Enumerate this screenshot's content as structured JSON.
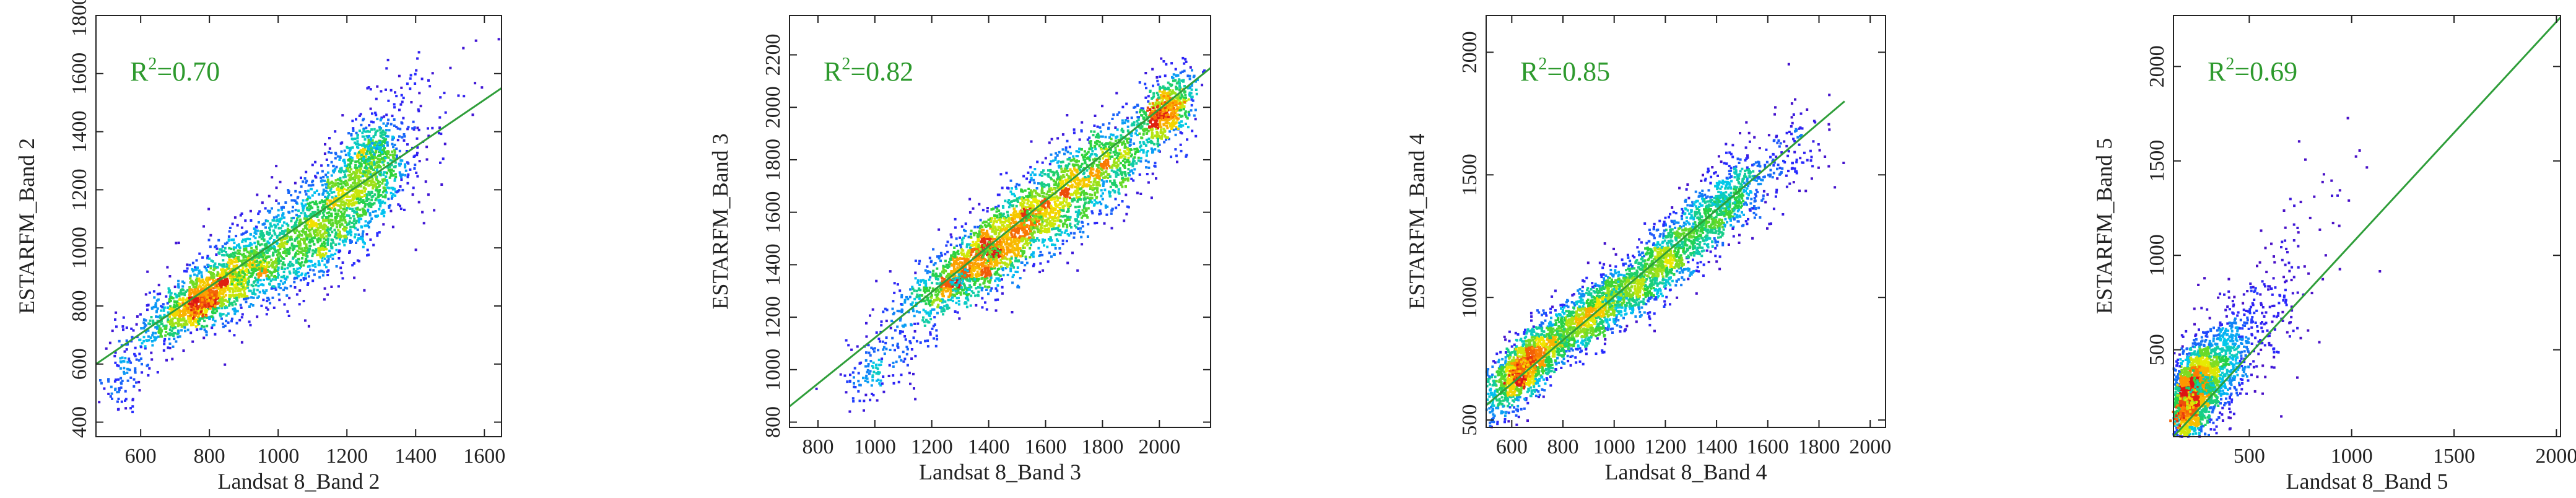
{
  "chart_data": [
    {
      "type": "scatter",
      "xlabel": "Landsat 8_Band 2",
      "ylabel": "ESTARFM_Band 2",
      "annotation": {
        "prefix": "R",
        "sup": "2",
        "value": "=0.70"
      },
      "xlim": [
        470,
        1650
      ],
      "ylim": [
        350,
        1800
      ],
      "xticks": [
        600,
        800,
        1000,
        1200,
        1400,
        1600
      ],
      "yticks": [
        400,
        600,
        800,
        1000,
        1200,
        1400,
        1600,
        1800
      ],
      "fit_line": {
        "x": [
          470,
          1650
        ],
        "y": [
          600,
          1550
        ]
      },
      "clusters": [
        {
          "cx": 780,
          "cy": 820,
          "sx": 80,
          "sy": 70,
          "rho": 0.75,
          "n": 900
        },
        {
          "cx": 950,
          "cy": 960,
          "sx": 140,
          "sy": 110,
          "rho": 0.7,
          "n": 1200
        },
        {
          "cx": 1160,
          "cy": 1120,
          "sx": 100,
          "sy": 120,
          "rho": 0.6,
          "n": 900
        },
        {
          "cx": 1270,
          "cy": 1280,
          "sx": 60,
          "sy": 100,
          "rho": 0.4,
          "n": 600
        },
        {
          "cx": 560,
          "cy": 580,
          "sx": 40,
          "sy": 80,
          "rho": 0.3,
          "n": 120
        },
        {
          "cx": 1400,
          "cy": 1500,
          "sx": 100,
          "sy": 130,
          "rho": 0.3,
          "n": 60
        }
      ],
      "dense_points": [
        {
          "x": 760,
          "y": 790,
          "c": 1.0
        },
        {
          "x": 800,
          "y": 830,
          "c": 0.95
        },
        {
          "x": 880,
          "y": 900,
          "c": 0.7
        },
        {
          "x": 950,
          "y": 960,
          "c": 0.65
        },
        {
          "x": 1260,
          "y": 1290,
          "c": 0.6
        },
        {
          "x": 1280,
          "y": 1350,
          "c": 0.5
        }
      ]
    },
    {
      "type": "scatter",
      "xlabel": "Landsat 8_Band 3",
      "ylabel": "ESTARFM_Band 3",
      "annotation": {
        "prefix": "R",
        "sup": "2",
        "value": "=0.82"
      },
      "xlim": [
        700,
        2180
      ],
      "ylim": [
        780,
        2350
      ],
      "xticks": [
        800,
        1000,
        1200,
        1400,
        1600,
        1800,
        2000
      ],
      "yticks": [
        800,
        1000,
        1200,
        1400,
        1600,
        1800,
        2000,
        2200
      ],
      "fit_line": {
        "x": [
          700,
          2180
        ],
        "y": [
          860,
          2150
        ]
      },
      "clusters": [
        {
          "cx": 1320,
          "cy": 1380,
          "sx": 120,
          "sy": 110,
          "rho": 0.8,
          "n": 900
        },
        {
          "cx": 1550,
          "cy": 1580,
          "sx": 160,
          "sy": 150,
          "rho": 0.8,
          "n": 1500
        },
        {
          "cx": 1800,
          "cy": 1760,
          "sx": 120,
          "sy": 120,
          "rho": 0.7,
          "n": 700
        },
        {
          "cx": 2020,
          "cy": 1990,
          "sx": 50,
          "sy": 70,
          "rho": 0.5,
          "n": 500
        },
        {
          "cx": 1020,
          "cy": 1020,
          "sx": 70,
          "sy": 90,
          "rho": 0.5,
          "n": 150
        }
      ],
      "dense_points": [
        {
          "x": 1400,
          "y": 1450,
          "c": 0.7
        },
        {
          "x": 1560,
          "y": 1580,
          "c": 0.7
        },
        {
          "x": 2010,
          "y": 1990,
          "c": 1.0
        },
        {
          "x": 2040,
          "y": 2010,
          "c": 0.9
        },
        {
          "x": 1300,
          "y": 1330,
          "c": 0.55
        }
      ]
    },
    {
      "type": "scatter",
      "xlabel": "Landsat 8_Band 4",
      "ylabel": "ESTARFM_Band 4",
      "annotation": {
        "prefix": "R",
        "sup": "2",
        "value": "=0.85"
      },
      "xlim": [
        500,
        2060
      ],
      "ylim": [
        470,
        2150
      ],
      "xticks": [
        600,
        800,
        1000,
        1200,
        1400,
        1600,
        1800,
        2000
      ],
      "yticks": [
        500,
        1000,
        1500,
        2000
      ],
      "fit_line": {
        "x": [
          500,
          1900
        ],
        "y": [
          560,
          1800
        ]
      },
      "clusters": [
        {
          "cx": 640,
          "cy": 700,
          "sx": 70,
          "sy": 90,
          "rho": 0.6,
          "n": 1100
        },
        {
          "cx": 900,
          "cy": 920,
          "sx": 130,
          "sy": 110,
          "rho": 0.8,
          "n": 1300
        },
        {
          "cx": 1200,
          "cy": 1150,
          "sx": 110,
          "sy": 110,
          "rho": 0.75,
          "n": 900
        },
        {
          "cx": 1420,
          "cy": 1380,
          "sx": 90,
          "sy": 90,
          "rho": 0.6,
          "n": 600
        },
        {
          "cx": 1650,
          "cy": 1550,
          "sx": 120,
          "sy": 120,
          "rho": 0.5,
          "n": 150
        }
      ],
      "dense_points": [
        {
          "x": 620,
          "y": 690,
          "c": 1.0
        },
        {
          "x": 660,
          "y": 720,
          "c": 0.9
        },
        {
          "x": 800,
          "y": 830,
          "c": 0.65
        },
        {
          "x": 1420,
          "y": 1390,
          "c": 0.55
        },
        {
          "x": 1000,
          "y": 1000,
          "c": 0.55
        }
      ]
    },
    {
      "type": "scatter",
      "xlabel": "Landsat 8_Band 5",
      "ylabel": "ESTARFM_Band 5",
      "annotation": {
        "prefix": "R",
        "sup": "2",
        "value": "=0.69"
      },
      "xlim": [
        130,
        2020
      ],
      "ylim": [
        40,
        2270
      ],
      "xticks": [
        500,
        1000,
        1500,
        2000
      ],
      "yticks": [
        500,
        1000,
        1500,
        2000
      ],
      "fit_line": {
        "x": [
          130,
          2020
        ],
        "y": [
          40,
          2260
        ]
      },
      "clusters": [
        {
          "cx": 220,
          "cy": 260,
          "sx": 60,
          "sy": 130,
          "rho": 0.4,
          "n": 1400
        },
        {
          "cx": 330,
          "cy": 380,
          "sx": 90,
          "sy": 160,
          "rho": 0.5,
          "n": 800
        },
        {
          "cx": 550,
          "cy": 650,
          "sx": 140,
          "sy": 200,
          "rho": 0.5,
          "n": 180
        },
        {
          "cx": 850,
          "cy": 1150,
          "sx": 150,
          "sy": 250,
          "rho": 0.4,
          "n": 40
        }
      ],
      "dense_points": [
        {
          "x": 180,
          "y": 150,
          "c": 1.0
        },
        {
          "x": 210,
          "y": 230,
          "c": 0.8
        },
        {
          "x": 250,
          "y": 320,
          "c": 0.6
        },
        {
          "x": 300,
          "y": 300,
          "c": 0.55
        }
      ]
    }
  ]
}
